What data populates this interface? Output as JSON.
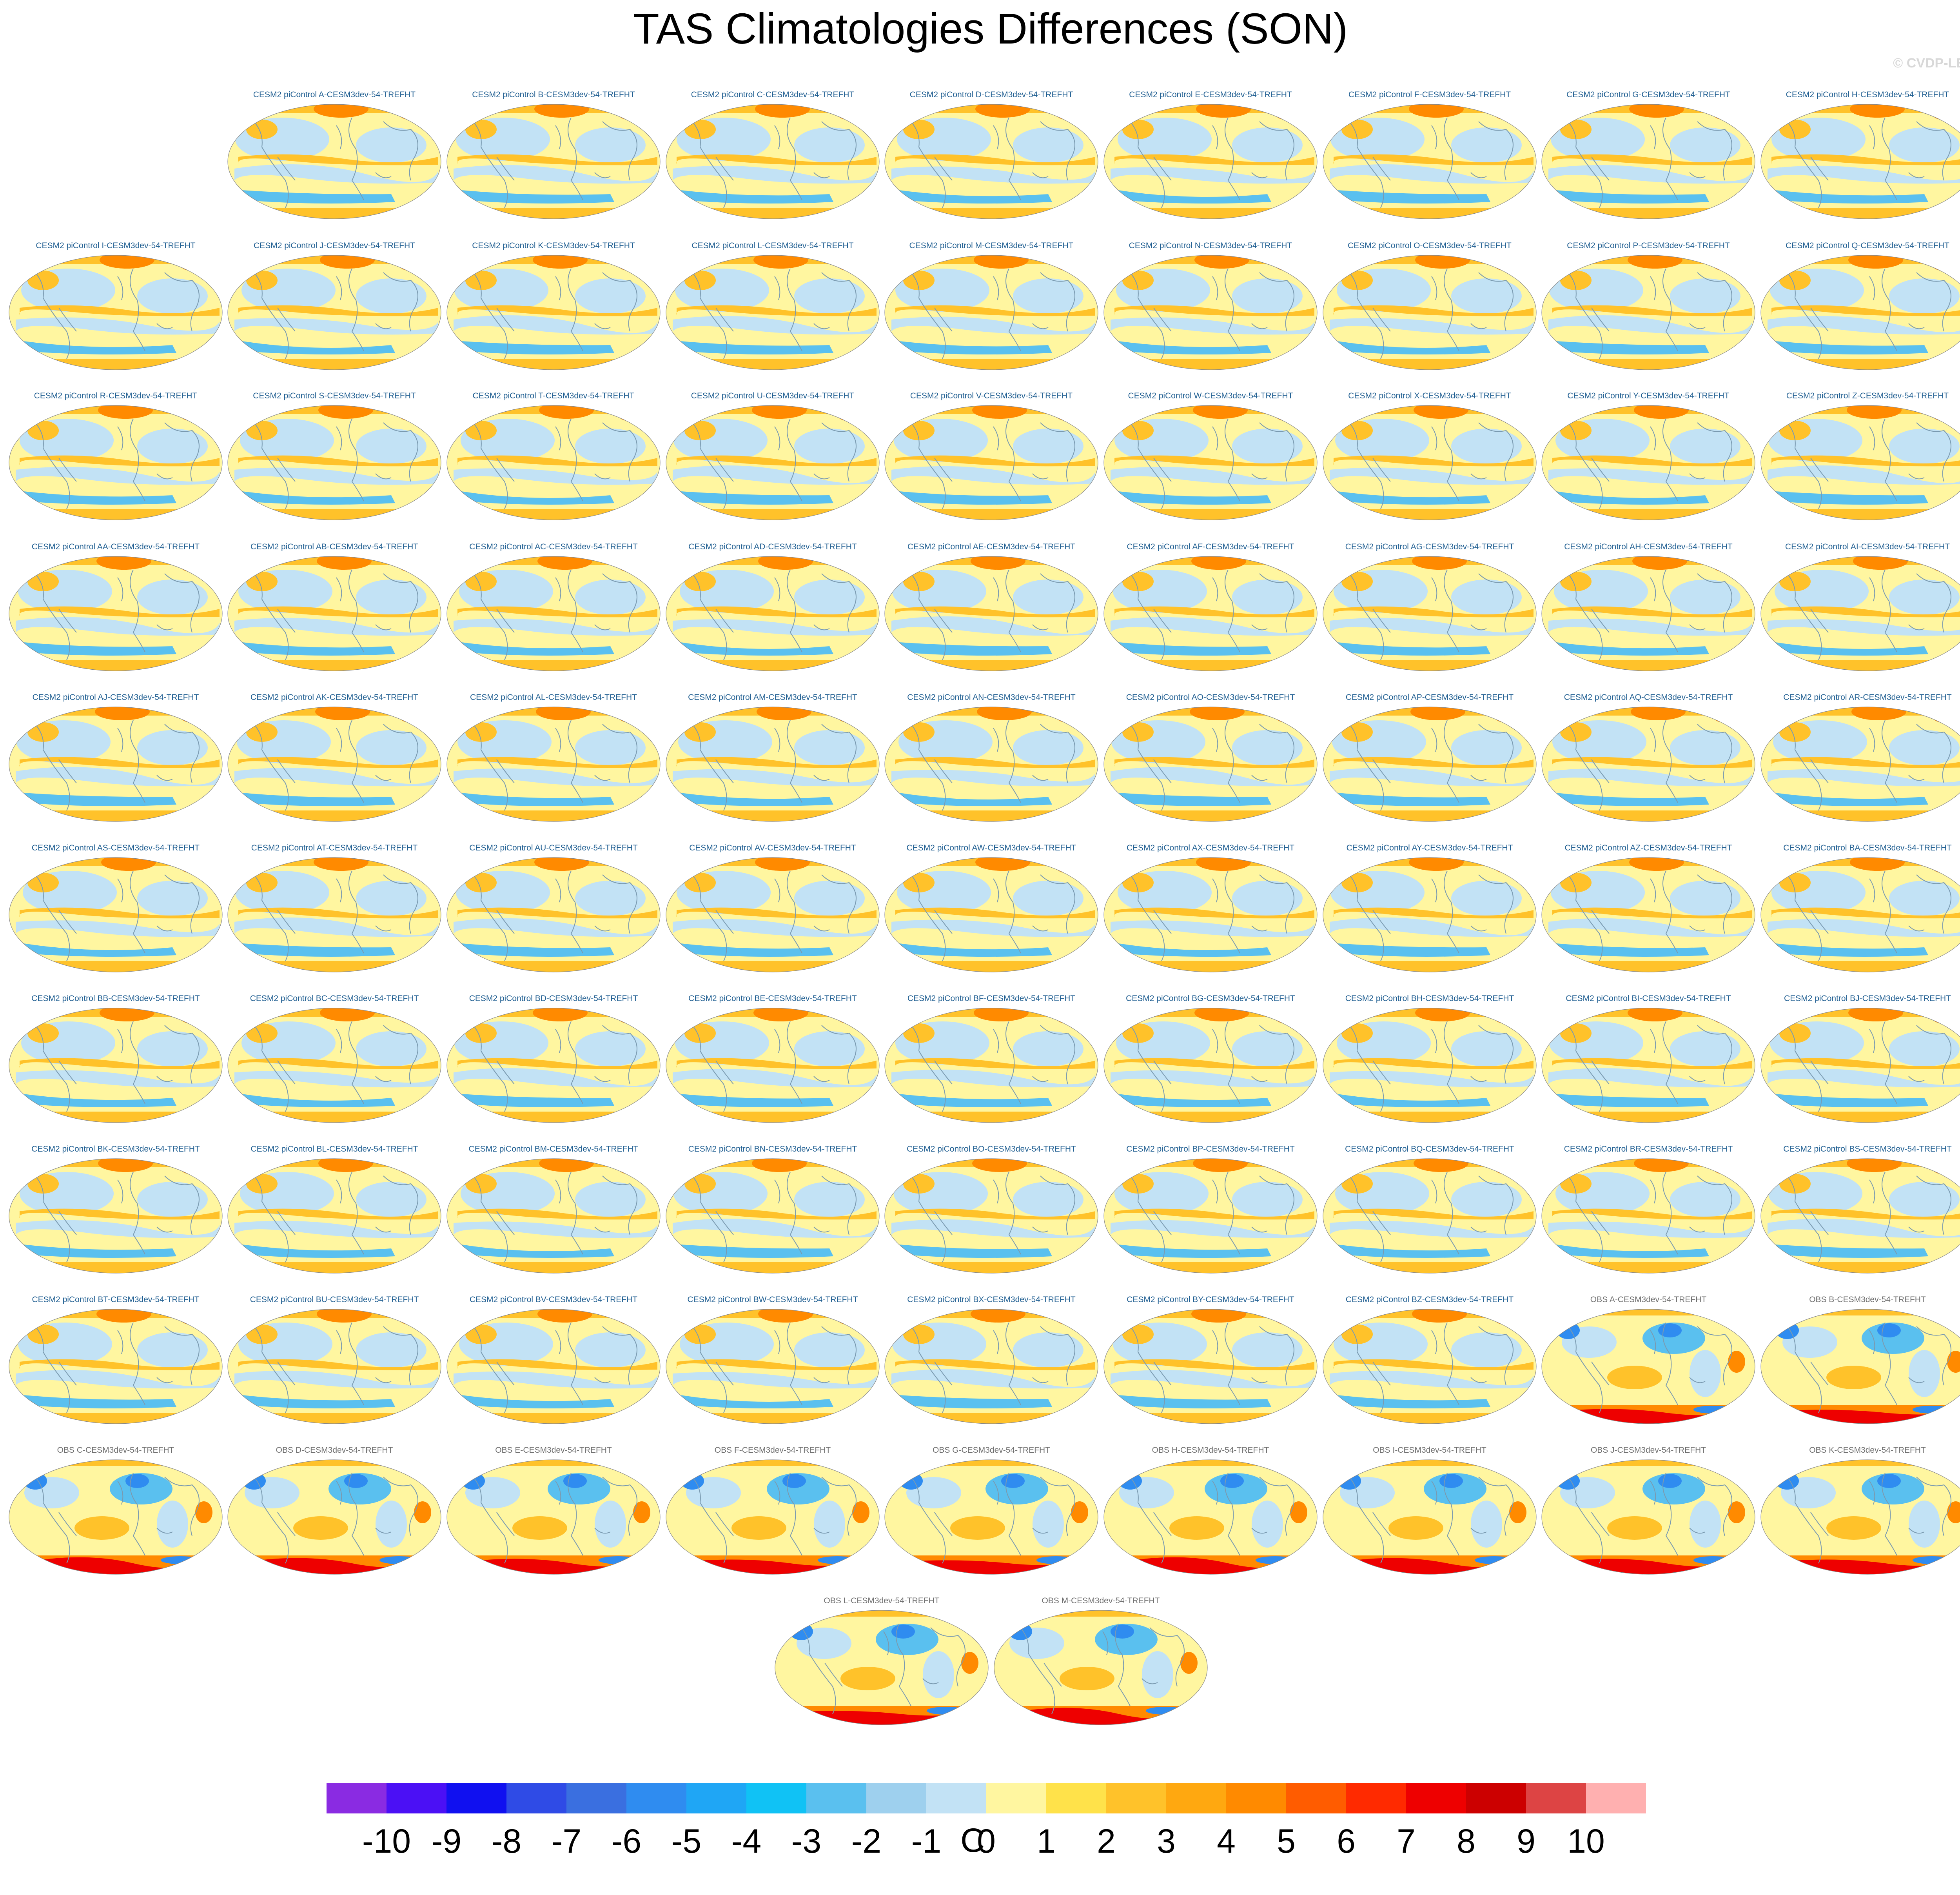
{
  "title": "TAS Climatologies Differences (SON)",
  "copyright": "© CVDP-LE",
  "panels": [
    {
      "label": "CESM2 piControl A-CESM3dev-54-TREFHT",
      "kind": "model"
    },
    {
      "label": "CESM2 piControl B-CESM3dev-54-TREFHT",
      "kind": "model"
    },
    {
      "label": "CESM2 piControl C-CESM3dev-54-TREFHT",
      "kind": "model"
    },
    {
      "label": "CESM2 piControl D-CESM3dev-54-TREFHT",
      "kind": "model"
    },
    {
      "label": "CESM2 piControl E-CESM3dev-54-TREFHT",
      "kind": "model"
    },
    {
      "label": "CESM2 piControl F-CESM3dev-54-TREFHT",
      "kind": "model"
    },
    {
      "label": "CESM2 piControl G-CESM3dev-54-TREFHT",
      "kind": "model"
    },
    {
      "label": "CESM2 piControl H-CESM3dev-54-TREFHT",
      "kind": "model"
    },
    {
      "label": "CESM2 piControl I-CESM3dev-54-TREFHT",
      "kind": "model"
    },
    {
      "label": "CESM2 piControl J-CESM3dev-54-TREFHT",
      "kind": "model"
    },
    {
      "label": "CESM2 piControl K-CESM3dev-54-TREFHT",
      "kind": "model"
    },
    {
      "label": "CESM2 piControl L-CESM3dev-54-TREFHT",
      "kind": "model"
    },
    {
      "label": "CESM2 piControl M-CESM3dev-54-TREFHT",
      "kind": "model"
    },
    {
      "label": "CESM2 piControl N-CESM3dev-54-TREFHT",
      "kind": "model"
    },
    {
      "label": "CESM2 piControl O-CESM3dev-54-TREFHT",
      "kind": "model"
    },
    {
      "label": "CESM2 piControl P-CESM3dev-54-TREFHT",
      "kind": "model"
    },
    {
      "label": "CESM2 piControl Q-CESM3dev-54-TREFHT",
      "kind": "model"
    },
    {
      "label": "CESM2 piControl R-CESM3dev-54-TREFHT",
      "kind": "model"
    },
    {
      "label": "CESM2 piControl S-CESM3dev-54-TREFHT",
      "kind": "model"
    },
    {
      "label": "CESM2 piControl T-CESM3dev-54-TREFHT",
      "kind": "model"
    },
    {
      "label": "CESM2 piControl U-CESM3dev-54-TREFHT",
      "kind": "model"
    },
    {
      "label": "CESM2 piControl V-CESM3dev-54-TREFHT",
      "kind": "model"
    },
    {
      "label": "CESM2 piControl W-CESM3dev-54-TREFHT",
      "kind": "model"
    },
    {
      "label": "CESM2 piControl X-CESM3dev-54-TREFHT",
      "kind": "model"
    },
    {
      "label": "CESM2 piControl Y-CESM3dev-54-TREFHT",
      "kind": "model"
    },
    {
      "label": "CESM2 piControl Z-CESM3dev-54-TREFHT",
      "kind": "model"
    },
    {
      "label": "CESM2 piControl AA-CESM3dev-54-TREFHT",
      "kind": "model"
    },
    {
      "label": "CESM2 piControl AB-CESM3dev-54-TREFHT",
      "kind": "model"
    },
    {
      "label": "CESM2 piControl AC-CESM3dev-54-TREFHT",
      "kind": "model"
    },
    {
      "label": "CESM2 piControl AD-CESM3dev-54-TREFHT",
      "kind": "model"
    },
    {
      "label": "CESM2 piControl AE-CESM3dev-54-TREFHT",
      "kind": "model"
    },
    {
      "label": "CESM2 piControl AF-CESM3dev-54-TREFHT",
      "kind": "model"
    },
    {
      "label": "CESM2 piControl AG-CESM3dev-54-TREFHT",
      "kind": "model"
    },
    {
      "label": "CESM2 piControl AH-CESM3dev-54-TREFHT",
      "kind": "model"
    },
    {
      "label": "CESM2 piControl AI-CESM3dev-54-TREFHT",
      "kind": "model"
    },
    {
      "label": "CESM2 piControl AJ-CESM3dev-54-TREFHT",
      "kind": "model"
    },
    {
      "label": "CESM2 piControl AK-CESM3dev-54-TREFHT",
      "kind": "model"
    },
    {
      "label": "CESM2 piControl AL-CESM3dev-54-TREFHT",
      "kind": "model"
    },
    {
      "label": "CESM2 piControl AM-CESM3dev-54-TREFHT",
      "kind": "model"
    },
    {
      "label": "CESM2 piControl AN-CESM3dev-54-TREFHT",
      "kind": "model"
    },
    {
      "label": "CESM2 piControl AO-CESM3dev-54-TREFHT",
      "kind": "model"
    },
    {
      "label": "CESM2 piControl AP-CESM3dev-54-TREFHT",
      "kind": "model"
    },
    {
      "label": "CESM2 piControl AQ-CESM3dev-54-TREFHT",
      "kind": "model"
    },
    {
      "label": "CESM2 piControl AR-CESM3dev-54-TREFHT",
      "kind": "model"
    },
    {
      "label": "CESM2 piControl AS-CESM3dev-54-TREFHT",
      "kind": "model"
    },
    {
      "label": "CESM2 piControl AT-CESM3dev-54-TREFHT",
      "kind": "model"
    },
    {
      "label": "CESM2 piControl AU-CESM3dev-54-TREFHT",
      "kind": "model"
    },
    {
      "label": "CESM2 piControl AV-CESM3dev-54-TREFHT",
      "kind": "model"
    },
    {
      "label": "CESM2 piControl AW-CESM3dev-54-TREFHT",
      "kind": "model"
    },
    {
      "label": "CESM2 piControl AX-CESM3dev-54-TREFHT",
      "kind": "model"
    },
    {
      "label": "CESM2 piControl AY-CESM3dev-54-TREFHT",
      "kind": "model"
    },
    {
      "label": "CESM2 piControl AZ-CESM3dev-54-TREFHT",
      "kind": "model"
    },
    {
      "label": "CESM2 piControl BA-CESM3dev-54-TREFHT",
      "kind": "model"
    },
    {
      "label": "CESM2 piControl BB-CESM3dev-54-TREFHT",
      "kind": "model"
    },
    {
      "label": "CESM2 piControl BC-CESM3dev-54-TREFHT",
      "kind": "model"
    },
    {
      "label": "CESM2 piControl BD-CESM3dev-54-TREFHT",
      "kind": "model"
    },
    {
      "label": "CESM2 piControl BE-CESM3dev-54-TREFHT",
      "kind": "model"
    },
    {
      "label": "CESM2 piControl BF-CESM3dev-54-TREFHT",
      "kind": "model"
    },
    {
      "label": "CESM2 piControl BG-CESM3dev-54-TREFHT",
      "kind": "model"
    },
    {
      "label": "CESM2 piControl BH-CESM3dev-54-TREFHT",
      "kind": "model"
    },
    {
      "label": "CESM2 piControl BI-CESM3dev-54-TREFHT",
      "kind": "model"
    },
    {
      "label": "CESM2 piControl BJ-CESM3dev-54-TREFHT",
      "kind": "model"
    },
    {
      "label": "CESM2 piControl BK-CESM3dev-54-TREFHT",
      "kind": "model"
    },
    {
      "label": "CESM2 piControl BL-CESM3dev-54-TREFHT",
      "kind": "model"
    },
    {
      "label": "CESM2 piControl BM-CESM3dev-54-TREFHT",
      "kind": "model"
    },
    {
      "label": "CESM2 piControl BN-CESM3dev-54-TREFHT",
      "kind": "model"
    },
    {
      "label": "CESM2 piControl BO-CESM3dev-54-TREFHT",
      "kind": "model"
    },
    {
      "label": "CESM2 piControl BP-CESM3dev-54-TREFHT",
      "kind": "model"
    },
    {
      "label": "CESM2 piControl BQ-CESM3dev-54-TREFHT",
      "kind": "model"
    },
    {
      "label": "CESM2 piControl BR-CESM3dev-54-TREFHT",
      "kind": "model"
    },
    {
      "label": "CESM2 piControl BS-CESM3dev-54-TREFHT",
      "kind": "model"
    },
    {
      "label": "CESM2 piControl BT-CESM3dev-54-TREFHT",
      "kind": "model"
    },
    {
      "label": "CESM2 piControl BU-CESM3dev-54-TREFHT",
      "kind": "model"
    },
    {
      "label": "CESM2 piControl BV-CESM3dev-54-TREFHT",
      "kind": "model"
    },
    {
      "label": "CESM2 piControl BW-CESM3dev-54-TREFHT",
      "kind": "model"
    },
    {
      "label": "CESM2 piControl BX-CESM3dev-54-TREFHT",
      "kind": "model"
    },
    {
      "label": "CESM2 piControl BY-CESM3dev-54-TREFHT",
      "kind": "model"
    },
    {
      "label": "CESM2 piControl BZ-CESM3dev-54-TREFHT",
      "kind": "model"
    },
    {
      "label": "OBS A-CESM3dev-54-TREFHT",
      "kind": "obs"
    },
    {
      "label": "OBS B-CESM3dev-54-TREFHT",
      "kind": "obs"
    },
    {
      "label": "OBS C-CESM3dev-54-TREFHT",
      "kind": "obs"
    },
    {
      "label": "OBS D-CESM3dev-54-TREFHT",
      "kind": "obs"
    },
    {
      "label": "OBS E-CESM3dev-54-TREFHT",
      "kind": "obs"
    },
    {
      "label": "OBS F-CESM3dev-54-TREFHT",
      "kind": "obs"
    },
    {
      "label": "OBS G-CESM3dev-54-TREFHT",
      "kind": "obs"
    },
    {
      "label": "OBS H-CESM3dev-54-TREFHT",
      "kind": "obs"
    },
    {
      "label": "OBS I-CESM3dev-54-TREFHT",
      "kind": "obs"
    },
    {
      "label": "OBS J-CESM3dev-54-TREFHT",
      "kind": "obs"
    },
    {
      "label": "OBS K-CESM3dev-54-TREFHT",
      "kind": "obs"
    },
    {
      "label": "OBS L-CESM3dev-54-TREFHT",
      "kind": "obs"
    },
    {
      "label": "OBS M-CESM3dev-54-TREFHT",
      "kind": "obs"
    }
  ],
  "colorbar": {
    "colors": [
      "#8a2be2",
      "#4b10f5",
      "#1010f0",
      "#2f4be6",
      "#3a6fe0",
      "#2f8cf0",
      "#1fa6f5",
      "#10c2f5",
      "#5ac0ef",
      "#9ed0ee",
      "#c2e2f5",
      "#fff6a0",
      "#ffe24a",
      "#ffc22a",
      "#ffa810",
      "#ff8a00",
      "#ff5c00",
      "#ff2a00",
      "#ee0000",
      "#cc0000",
      "#dd4444",
      "#ffb0b0"
    ],
    "tick_labels": [
      "-10",
      "-9",
      "-8",
      "-7",
      "-6",
      "-5",
      "-4",
      "-3",
      "-2",
      "-1",
      "0",
      "1",
      "2",
      "3",
      "4",
      "5",
      "6",
      "7",
      "8",
      "9",
      "10"
    ],
    "unit": "C"
  },
  "map_colors": {
    "model_base": "#fff6a0",
    "cool": "#c2e2f5",
    "warm": "#ffc22a",
    "hot": "#ff8a00",
    "cold": "#5ac0ef",
    "coast": "#7a9ab0",
    "obs_blue": "#2f8cf0",
    "obs_red": "#ee0000"
  }
}
